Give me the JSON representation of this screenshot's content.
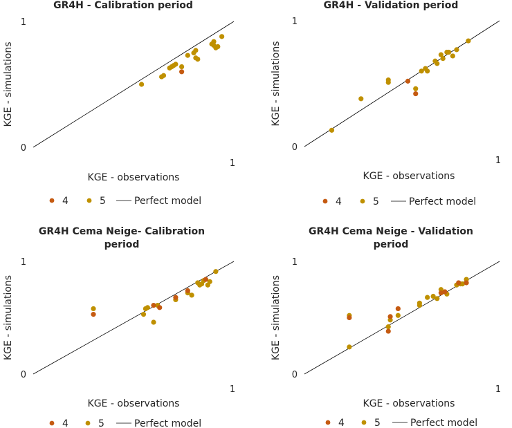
{
  "colors": {
    "series4": "#c55a11",
    "series5": "#bf9000",
    "line": "#000000"
  },
  "legend": {
    "series4": "4",
    "series5": "5",
    "perfect": "Perfect model"
  },
  "chart_data": [
    {
      "type": "scatter",
      "title_lines": [
        "GR4H - Calibration period"
      ],
      "xlabel": "KGE - observations",
      "ylabel": "KGE - simulations",
      "xlim": [
        0,
        1
      ],
      "ylim": [
        0,
        1
      ],
      "tick_min": "0",
      "tick_max": "1",
      "grid": false,
      "legend_position": "bottom",
      "series": [
        {
          "name": "4",
          "points": [
            [
              0.74,
              0.6
            ]
          ]
        },
        {
          "name": "5",
          "points": [
            [
              0.54,
              0.5
            ],
            [
              0.64,
              0.56
            ],
            [
              0.65,
              0.57
            ],
            [
              0.68,
              0.63
            ],
            [
              0.69,
              0.64
            ],
            [
              0.7,
              0.65
            ],
            [
              0.71,
              0.66
            ],
            [
              0.74,
              0.64
            ],
            [
              0.77,
              0.73
            ],
            [
              0.8,
              0.75
            ],
            [
              0.81,
              0.77
            ],
            [
              0.81,
              0.71
            ],
            [
              0.82,
              0.7
            ],
            [
              0.89,
              0.82
            ],
            [
              0.9,
              0.84
            ],
            [
              0.9,
              0.81
            ],
            [
              0.91,
              0.79
            ],
            [
              0.92,
              0.8
            ],
            [
              0.94,
              0.88
            ]
          ]
        }
      ]
    },
    {
      "type": "scatter",
      "title_lines": [
        "GR4H - Validation period"
      ],
      "xlabel": "KGE - observations",
      "ylabel": "KGE - simulations",
      "xlim": [
        0,
        1
      ],
      "ylim": [
        0,
        1
      ],
      "tick_min": "0",
      "tick_max": "1",
      "grid": false,
      "legend_position": "bottom",
      "series": [
        {
          "name": "4",
          "points": [
            [
              0.53,
              0.52
            ],
            [
              0.57,
              0.42
            ]
          ]
        },
        {
          "name": "5",
          "points": [
            [
              0.14,
              0.13
            ],
            [
              0.29,
              0.38
            ],
            [
              0.43,
              0.53
            ],
            [
              0.43,
              0.51
            ],
            [
              0.57,
              0.46
            ],
            [
              0.6,
              0.6
            ],
            [
              0.62,
              0.62
            ],
            [
              0.63,
              0.6
            ],
            [
              0.67,
              0.68
            ],
            [
              0.68,
              0.66
            ],
            [
              0.7,
              0.73
            ],
            [
              0.71,
              0.7
            ],
            [
              0.73,
              0.75
            ],
            [
              0.74,
              0.75
            ],
            [
              0.76,
              0.72
            ],
            [
              0.78,
              0.77
            ],
            [
              0.84,
              0.84
            ]
          ]
        }
      ]
    },
    {
      "type": "scatter",
      "title_lines": [
        "GR4H Cema Neige- Calibration",
        "period"
      ],
      "xlabel": "KGE - observations",
      "ylabel": "KGE - simulations",
      "xlim": [
        0,
        1
      ],
      "ylim": [
        0,
        1
      ],
      "tick_min": "0",
      "tick_max": "1",
      "grid": false,
      "legend_position": "bottom",
      "series": [
        {
          "name": "4",
          "points": [
            [
              0.3,
              0.53
            ],
            [
              0.6,
              0.61
            ],
            [
              0.63,
              0.59
            ],
            [
              0.71,
              0.68
            ],
            [
              0.77,
              0.74
            ],
            [
              0.86,
              0.84
            ]
          ]
        },
        {
          "name": "5",
          "points": [
            [
              0.3,
              0.58
            ],
            [
              0.55,
              0.53
            ],
            [
              0.56,
              0.58
            ],
            [
              0.57,
              0.59
            ],
            [
              0.6,
              0.46
            ],
            [
              0.62,
              0.61
            ],
            [
              0.71,
              0.66
            ],
            [
              0.77,
              0.72
            ],
            [
              0.79,
              0.7
            ],
            [
              0.82,
              0.81
            ],
            [
              0.83,
              0.79
            ],
            [
              0.84,
              0.8
            ],
            [
              0.85,
              0.83
            ],
            [
              0.87,
              0.79
            ],
            [
              0.88,
              0.82
            ],
            [
              0.91,
              0.91
            ]
          ]
        }
      ]
    },
    {
      "type": "scatter",
      "title_lines": [
        "GR4H Cema Neige - Validation",
        "period"
      ],
      "xlabel": "KGE - observations",
      "ylabel": "KGE - simulations",
      "xlim": [
        0,
        1
      ],
      "ylim": [
        0,
        1
      ],
      "tick_min": "0",
      "tick_max": "1",
      "grid": false,
      "legend_position": "bottom",
      "series": [
        {
          "name": "4",
          "points": [
            [
              0.23,
              0.5
            ],
            [
              0.43,
              0.38
            ],
            [
              0.44,
              0.51
            ],
            [
              0.48,
              0.58
            ],
            [
              0.7,
              0.72
            ],
            [
              0.72,
              0.73
            ],
            [
              0.79,
              0.81
            ],
            [
              0.83,
              0.81
            ]
          ]
        },
        {
          "name": "5",
          "points": [
            [
              0.23,
              0.24
            ],
            [
              0.23,
              0.52
            ],
            [
              0.43,
              0.42
            ],
            [
              0.44,
              0.48
            ],
            [
              0.48,
              0.52
            ],
            [
              0.59,
              0.63
            ],
            [
              0.59,
              0.61
            ],
            [
              0.63,
              0.68
            ],
            [
              0.66,
              0.69
            ],
            [
              0.68,
              0.67
            ],
            [
              0.7,
              0.75
            ],
            [
              0.73,
              0.71
            ],
            [
              0.78,
              0.79
            ],
            [
              0.8,
              0.8
            ],
            [
              0.81,
              0.8
            ],
            [
              0.83,
              0.84
            ]
          ]
        }
      ]
    }
  ]
}
